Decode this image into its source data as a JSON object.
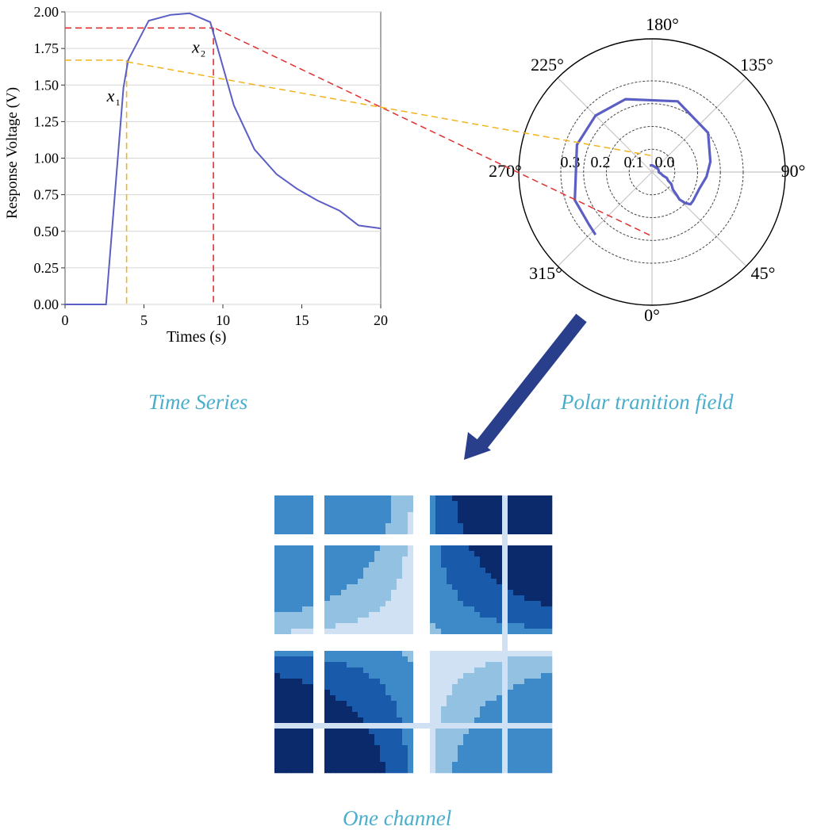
{
  "colors": {
    "series": "#5b5fc3",
    "x1_marker": "#f2b31d",
    "x2_marker": "#e03030",
    "caption": "#4aaecb",
    "arrow": "#2a3f8c",
    "grid": "#d6d6d6"
  },
  "chart_data": [
    {
      "type": "line",
      "xlabel": "Times (s)",
      "ylabel": "Response Voltage (V)",
      "xlim": [
        0,
        20
      ],
      "ylim": [
        0,
        2.0
      ],
      "xticks": [
        "0",
        "5",
        "10",
        "15",
        "20"
      ],
      "yticks": [
        "0.00",
        "0.25",
        "0.50",
        "0.75",
        "1.00",
        "1.25",
        "1.50",
        "1.75",
        "2.00"
      ],
      "grid": "horizontal",
      "series": [
        {
          "x": [
            0,
            2.6,
            3.7,
            4.0,
            5.3,
            6.7,
            7.9,
            9.2,
            10.7,
            12.0,
            13.4,
            14.7,
            16.0,
            17.4,
            18.6,
            20.0
          ],
          "y": [
            0.0,
            0.0,
            1.48,
            1.67,
            1.94,
            1.98,
            1.99,
            1.93,
            1.36,
            1.06,
            0.89,
            0.79,
            0.71,
            0.64,
            0.54,
            0.52
          ]
        }
      ],
      "markers": [
        {
          "label": "x",
          "sub": "1",
          "x": 3.9,
          "y": 1.67,
          "color": "x1_marker"
        },
        {
          "label": "x",
          "sub": "2",
          "x": 9.4,
          "y": 1.89,
          "color": "x2_marker"
        }
      ]
    },
    {
      "type": "polar",
      "angle_labels": [
        "180°",
        "135°",
        "90°",
        "45°",
        "0°",
        "315°",
        "270°",
        "225°"
      ],
      "radial_labels": [
        "0.3",
        "0.2",
        "0.1",
        "0.0"
      ],
      "series": [
        {
          "theta_deg": [
            318,
            310,
            290,
            250,
            225,
            200,
            160,
            125,
            100,
            85,
            70,
            55,
            50,
            47,
            45,
            47,
            50,
            58,
            62,
            68,
            72,
            80,
            88,
            100,
            118,
            180,
            200
          ],
          "r": [
            0.37,
            0.36,
            0.36,
            0.35,
            0.35,
            0.34,
            0.33,
            0.3,
            0.26,
            0.24,
            0.22,
            0.22,
            0.22,
            0.2,
            0.17,
            0.15,
            0.12,
            0.1,
            0.08,
            0.07,
            0.05,
            0.04,
            0.03,
            0.03,
            0.03,
            0.03,
            0.03
          ]
        }
      ]
    }
  ],
  "captions": {
    "time_series": "Time Series",
    "polar": "Polar tranition field",
    "channel": "One channel"
  },
  "heatmap": {
    "colors": [
      "#ffffff",
      "#cfe1f2",
      "#93c1e2",
      "#3e8ac9",
      "#1a5aab",
      "#0b2a6b"
    ]
  }
}
